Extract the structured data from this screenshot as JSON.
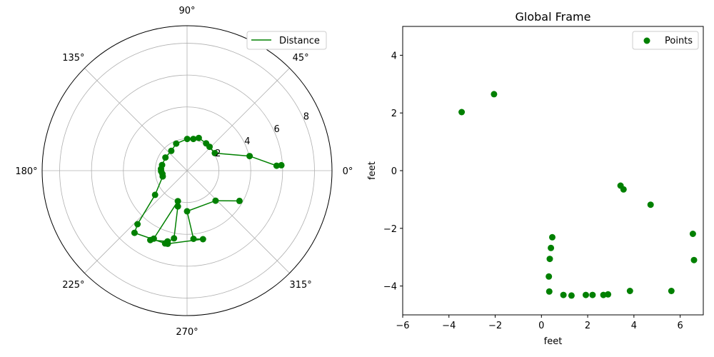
{
  "colors": {
    "series": "#008000",
    "grid": "#b0b0b0",
    "axis": "#000000",
    "legend_border": "#cccccc",
    "background": "#ffffff"
  },
  "chart_data": [
    {
      "type": "line",
      "subtype": "polar",
      "title": "",
      "angle_ticks": [
        {
          "deg": 0,
          "label": "0°"
        },
        {
          "deg": 45,
          "label": "45°"
        },
        {
          "deg": 90,
          "label": "90°"
        },
        {
          "deg": 135,
          "label": "135°"
        },
        {
          "deg": 180,
          "label": "180°"
        },
        {
          "deg": 225,
          "label": "225°"
        },
        {
          "deg": 270,
          "label": "270°"
        },
        {
          "deg": 315,
          "label": "315°"
        }
      ],
      "r_ticks": [
        {
          "value": 2,
          "label": "2"
        },
        {
          "value": 4,
          "label": "4"
        },
        {
          "value": 6,
          "label": "6"
        },
        {
          "value": 8,
          "label": "8"
        }
      ],
      "rlim": [
        0,
        9.1
      ],
      "legend": {
        "label": "Distance",
        "position": "upper-right"
      },
      "grid": true,
      "series": [
        {
          "name": "Distance",
          "marker": "circle",
          "points": [
            {
              "theta": 3.3,
              "r": 5.93
            },
            {
              "theta": 3.15,
              "r": 5.63
            },
            {
              "theta": 13.1,
              "r": 4.03
            },
            {
              "theta": 32.2,
              "r": 2.06
            },
            {
              "theta": 46.7,
              "r": 2.06
            },
            {
              "theta": 55.1,
              "r": 2.09
            },
            {
              "theta": 70.3,
              "r": 2.18
            },
            {
              "theta": 78.8,
              "r": 2.03
            },
            {
              "theta": 89.8,
              "r": 1.99
            },
            {
              "theta": 111.8,
              "r": 1.83
            },
            {
              "theta": 128.6,
              "r": 1.59
            },
            {
              "theta": 148.7,
              "r": 1.59
            },
            {
              "theta": 167.3,
              "r": 1.61
            },
            {
              "theta": 176.3,
              "r": 1.64
            },
            {
              "theta": 181.6,
              "r": 1.63
            },
            {
              "theta": 187.4,
              "r": 1.56
            },
            {
              "theta": 193.3,
              "r": 1.57
            },
            {
              "theta": 217.1,
              "r": 2.52
            },
            {
              "theta": 227.2,
              "r": 4.58
            },
            {
              "theta": 229.8,
              "r": 5.11
            },
            {
              "theta": 253.2,
              "r": 4.77
            },
            {
              "theta": 259.1,
              "r": 4.33
            },
            {
              "theta": 255.6,
              "r": 2.32
            },
            {
              "theta": 253.2,
              "r": 2.0
            },
            {
              "theta": 243.9,
              "r": 4.75
            },
            {
              "theta": 242.1,
              "r": 4.93
            },
            {
              "theta": 254.6,
              "r": 4.61
            },
            {
              "theta": 255.2,
              "r": 4.75
            },
            {
              "theta": 283.1,
              "r": 4.42
            },
            {
              "theta": 275.4,
              "r": 4.3
            },
            {
              "theta": 270.0,
              "r": 2.55
            },
            {
              "theta": 313.5,
              "r": 2.6
            },
            {
              "theta": 330.0,
              "r": 3.8
            }
          ]
        }
      ]
    },
    {
      "type": "scatter",
      "title": "Global Frame",
      "xlabel": "feet",
      "ylabel": "feet",
      "xlim": [
        -6,
        7
      ],
      "ylim": [
        -5,
        5
      ],
      "xticks": [
        -6,
        -4,
        -2,
        0,
        2,
        4,
        6
      ],
      "yticks": [
        -4,
        -2,
        0,
        2,
        4
      ],
      "grid": false,
      "legend": {
        "label": "Points",
        "position": "upper-right"
      },
      "series": [
        {
          "name": "Points",
          "marker": "circle",
          "points": [
            {
              "x": -3.45,
              "y": 2.03
            },
            {
              "x": -2.05,
              "y": 2.65
            },
            {
              "x": 3.42,
              "y": -0.52
            },
            {
              "x": 3.55,
              "y": -0.65
            },
            {
              "x": 4.72,
              "y": -1.18
            },
            {
              "x": 6.55,
              "y": -2.19
            },
            {
              "x": 6.6,
              "y": -3.1
            },
            {
              "x": 0.47,
              "y": -2.31
            },
            {
              "x": 0.41,
              "y": -2.68
            },
            {
              "x": 0.36,
              "y": -3.06
            },
            {
              "x": 0.32,
              "y": -3.67
            },
            {
              "x": 0.34,
              "y": -4.19
            },
            {
              "x": 0.95,
              "y": -4.31
            },
            {
              "x": 1.3,
              "y": -4.33
            },
            {
              "x": 1.92,
              "y": -4.31
            },
            {
              "x": 2.21,
              "y": -4.31
            },
            {
              "x": 2.68,
              "y": -4.31
            },
            {
              "x": 2.88,
              "y": -4.29
            },
            {
              "x": 3.83,
              "y": -4.17
            },
            {
              "x": 5.62,
              "y": -4.17
            }
          ]
        }
      ]
    }
  ]
}
